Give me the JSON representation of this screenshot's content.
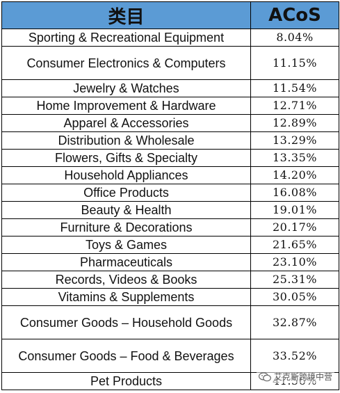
{
  "header": {
    "category": "类目",
    "acos": "ACoS"
  },
  "rows": [
    {
      "category": "Sporting & Recreational Equipment",
      "acos": "8.04%",
      "tall": false
    },
    {
      "category": "Consumer Electronics & Computers",
      "acos": "11.15%",
      "tall": true
    },
    {
      "category": "Jewelry & Watches",
      "acos": "11.54%",
      "tall": false
    },
    {
      "category": "Home Improvement & Hardware",
      "acos": "12.71%",
      "tall": false
    },
    {
      "category": "Apparel & Accessories",
      "acos": "12.89%",
      "tall": false
    },
    {
      "category": "Distribution & Wholesale",
      "acos": "13.29%",
      "tall": false
    },
    {
      "category": "Flowers, Gifts & Specialty",
      "acos": "13.35%",
      "tall": false
    },
    {
      "category": "Household Appliances",
      "acos": "14.20%",
      "tall": false
    },
    {
      "category": "Office Products",
      "acos": "16.08%",
      "tall": false
    },
    {
      "category": "Beauty & Health",
      "acos": "19.01%",
      "tall": false
    },
    {
      "category": "Furniture & Decorations",
      "acos": "20.17%",
      "tall": false
    },
    {
      "category": "Toys & Games",
      "acos": "21.65%",
      "tall": false
    },
    {
      "category": "Pharmaceuticals",
      "acos": "23.10%",
      "tall": false
    },
    {
      "category": "Records, Videos & Books",
      "acos": "25.31%",
      "tall": false
    },
    {
      "category": "Vitamins & Supplements",
      "acos": "30.05%",
      "tall": false
    },
    {
      "category": "Consumer Goods – Household Goods",
      "acos": "32.87%",
      "tall": true
    },
    {
      "category": "Consumer Goods – Food & Beverages",
      "acos": "33.52%",
      "tall": true
    },
    {
      "category": "Pet Products",
      "acos": "41.56%",
      "tall": false
    }
  ],
  "watermark": {
    "text": "艾克斯跨境中营",
    "icon": "wechat-icon"
  },
  "colors": {
    "header_bg": "#5b9bd5"
  }
}
